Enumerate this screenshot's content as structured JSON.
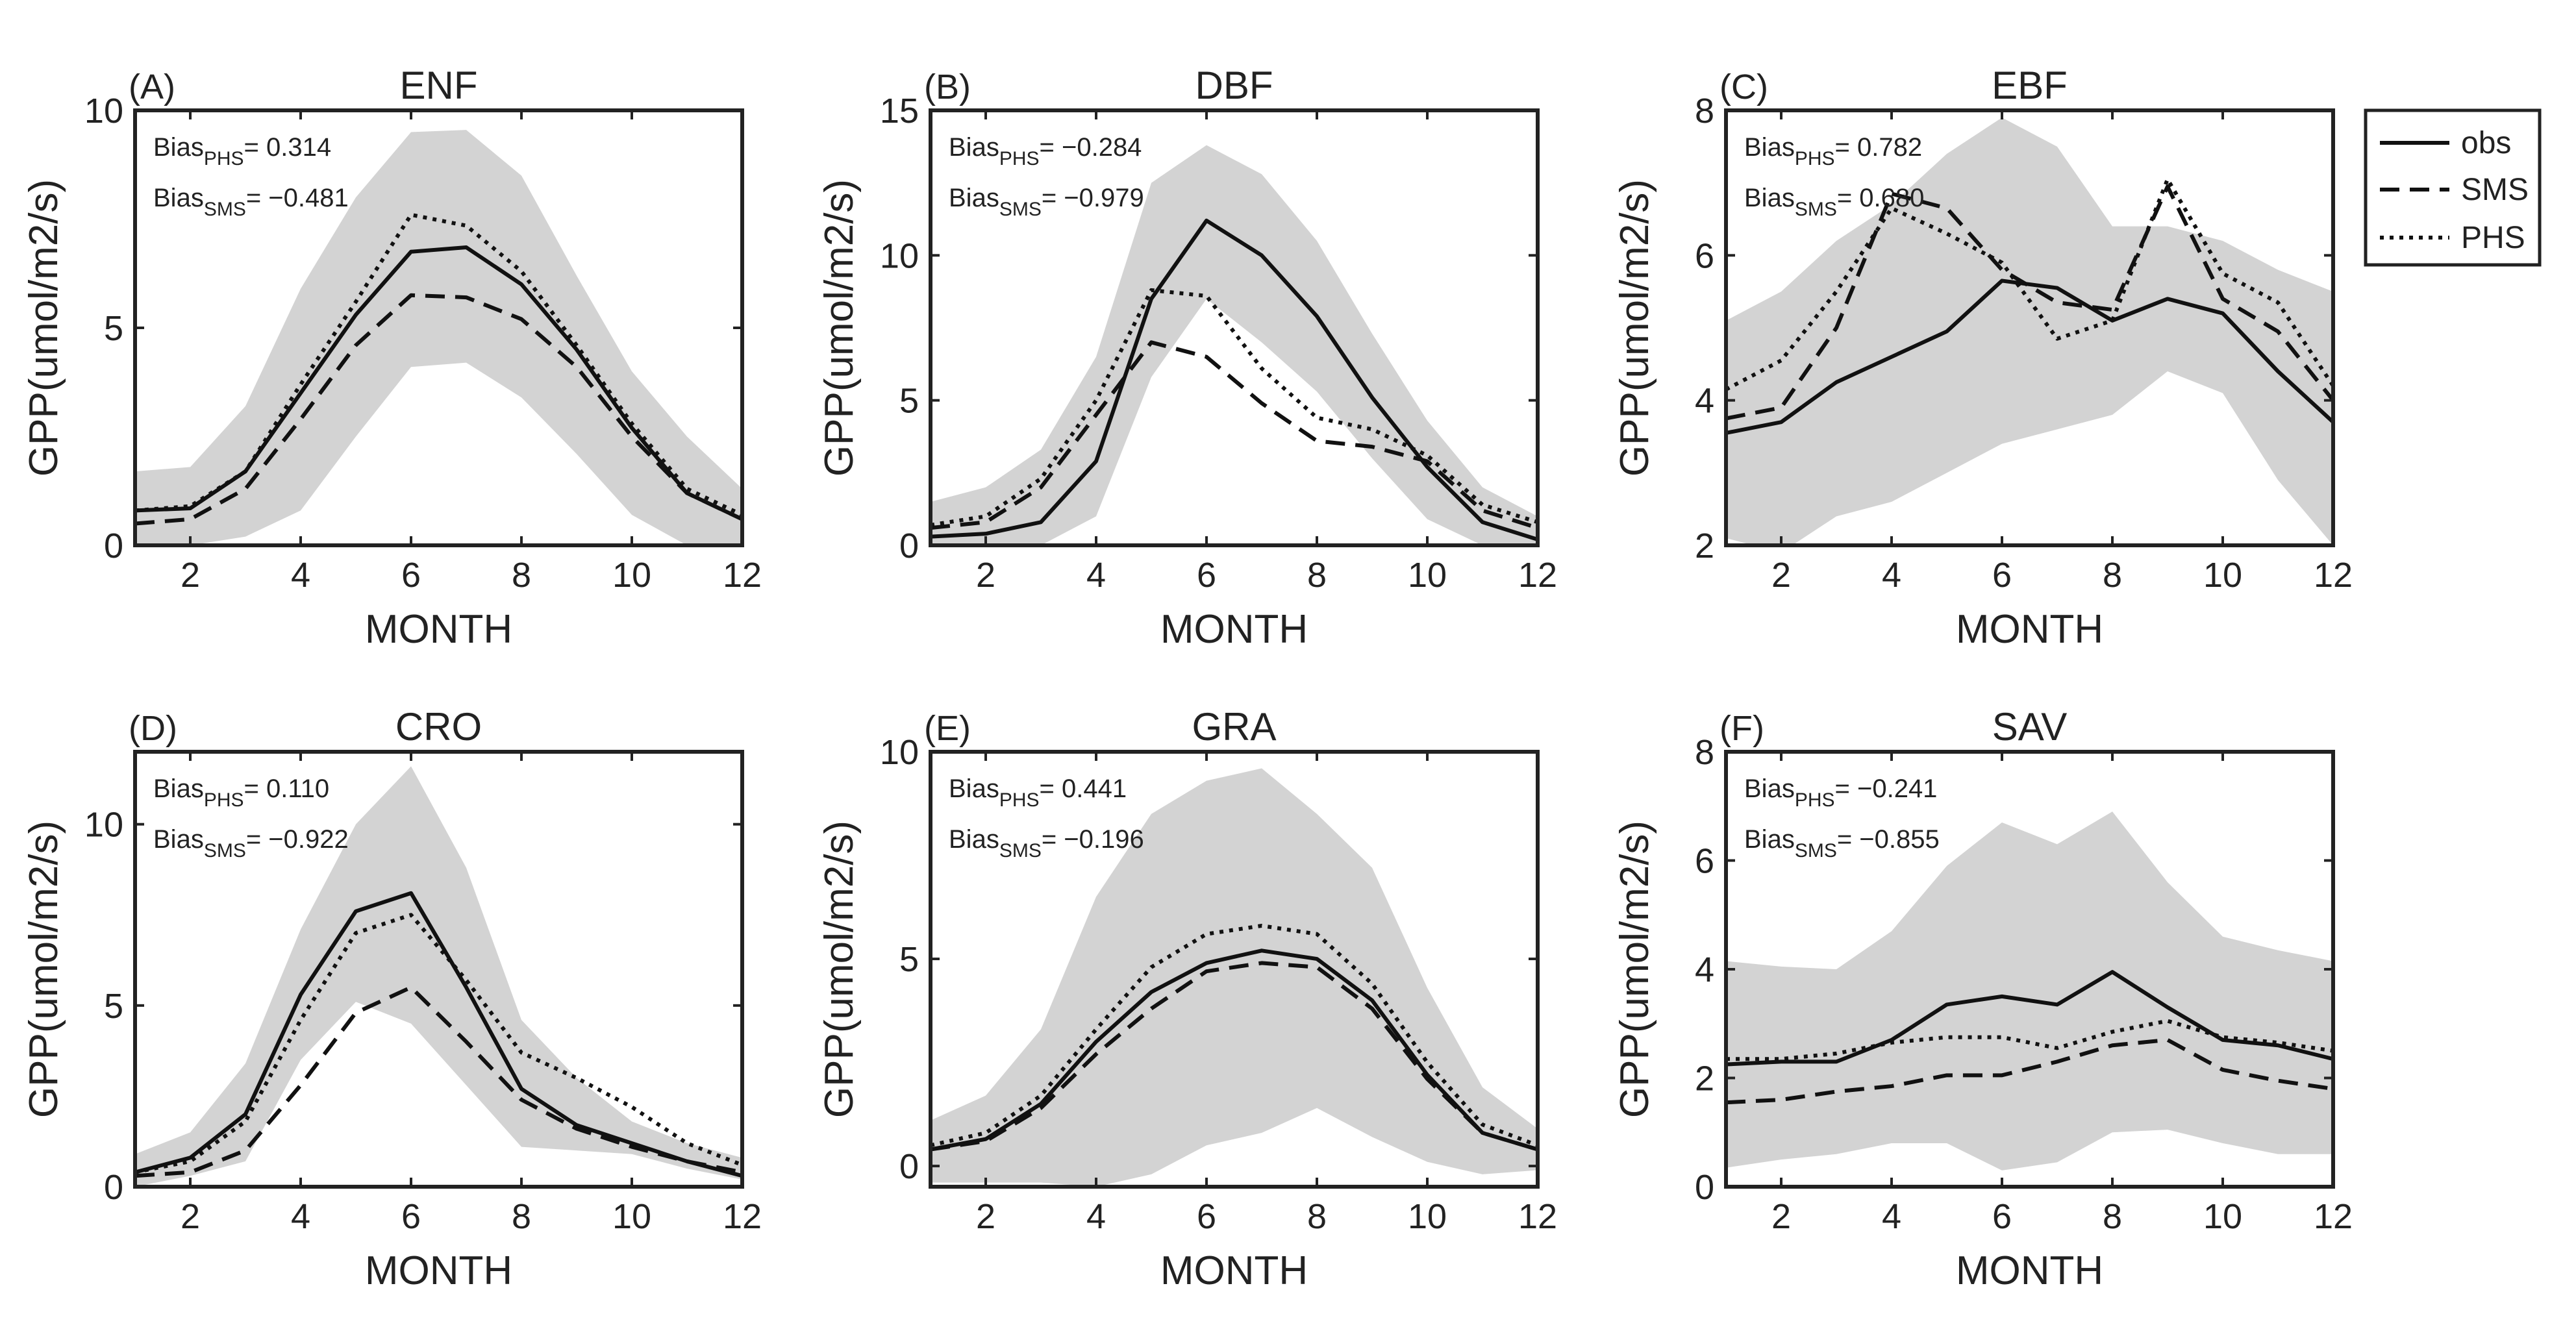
{
  "figure": {
    "xlabel": "MONTH",
    "ylabel": "GPP(umol/m2/s)",
    "bias_label": "Bias",
    "legend": [
      {
        "key": "obs",
        "label": "obs"
      },
      {
        "key": "sms",
        "label": "SMS"
      },
      {
        "key": "phs",
        "label": "PHS"
      }
    ],
    "colors": {
      "line": "#111111",
      "band": "#d3d3d3",
      "axis": "#222222"
    }
  },
  "chart_data": [
    {
      "type": "line",
      "panel": "(A)",
      "title": "ENF",
      "xlim": [
        1,
        12
      ],
      "ylim": [
        0,
        10
      ],
      "xticks": [
        2,
        4,
        6,
        8,
        10,
        12
      ],
      "yticks": [
        0,
        5,
        10
      ],
      "x": [
        1,
        2,
        3,
        4,
        5,
        6,
        7,
        8,
        9,
        10,
        11,
        12
      ],
      "series": [
        {
          "name": "obs",
          "values": [
            0.8,
            0.85,
            1.7,
            3.5,
            5.3,
            6.75,
            6.85,
            6.0,
            4.5,
            2.7,
            1.2,
            0.6
          ]
        },
        {
          "name": "SMS",
          "values": [
            0.5,
            0.6,
            1.3,
            2.9,
            4.6,
            5.75,
            5.7,
            5.2,
            4.1,
            2.5,
            1.2,
            0.6
          ]
        },
        {
          "name": "PHS",
          "values": [
            0.8,
            0.9,
            1.7,
            3.7,
            5.6,
            7.6,
            7.35,
            6.3,
            4.6,
            2.8,
            1.3,
            0.7
          ]
        }
      ],
      "band": {
        "upper": [
          1.7,
          1.8,
          3.2,
          5.9,
          8.0,
          9.5,
          9.55,
          8.5,
          6.2,
          4.0,
          2.5,
          1.3
        ],
        "lower": [
          0.0,
          0.0,
          0.2,
          0.8,
          2.5,
          4.1,
          4.2,
          3.4,
          2.1,
          0.7,
          0.0,
          0.0
        ]
      },
      "bias": [
        {
          "sub": "PHS",
          "value": "= 0.314"
        },
        {
          "sub": "SMS",
          "value": "= −0.481"
        }
      ]
    },
    {
      "type": "line",
      "panel": "(B)",
      "title": "DBF",
      "xlim": [
        1,
        12
      ],
      "ylim": [
        0,
        15
      ],
      "xticks": [
        2,
        4,
        6,
        8,
        10,
        12
      ],
      "yticks": [
        0,
        5,
        10,
        15
      ],
      "x": [
        1,
        2,
        3,
        4,
        5,
        6,
        7,
        8,
        9,
        10,
        11,
        12
      ],
      "series": [
        {
          "name": "obs",
          "values": [
            0.3,
            0.4,
            0.8,
            2.9,
            8.5,
            11.2,
            10.0,
            7.9,
            5.1,
            2.7,
            0.8,
            0.2
          ]
        },
        {
          "name": "SMS",
          "values": [
            0.6,
            0.8,
            2.0,
            4.5,
            7.0,
            6.5,
            4.9,
            3.6,
            3.4,
            2.9,
            1.2,
            0.6
          ]
        },
        {
          "name": "PHS",
          "values": [
            0.7,
            1.0,
            2.3,
            5.0,
            8.8,
            8.6,
            6.1,
            4.4,
            4.0,
            3.1,
            1.4,
            0.8
          ]
        }
      ],
      "band": {
        "upper": [
          1.5,
          2.0,
          3.3,
          6.5,
          12.5,
          13.8,
          12.8,
          10.5,
          7.3,
          4.3,
          2.0,
          1.0
        ],
        "lower": [
          0.0,
          0.0,
          0.0,
          1.0,
          5.8,
          8.5,
          7.0,
          5.3,
          3.0,
          0.9,
          0.0,
          0.0
        ]
      },
      "bias": [
        {
          "sub": "PHS",
          "value": "= −0.284"
        },
        {
          "sub": "SMS",
          "value": "= −0.979"
        }
      ]
    },
    {
      "type": "line",
      "panel": "(C)",
      "title": "EBF",
      "xlim": [
        1,
        12
      ],
      "ylim": [
        2,
        8
      ],
      "xticks": [
        2,
        4,
        6,
        8,
        10,
        12
      ],
      "yticks": [
        2,
        4,
        6,
        8
      ],
      "x": [
        1,
        2,
        3,
        4,
        5,
        6,
        7,
        8,
        9,
        10,
        11,
        12
      ],
      "series": [
        {
          "name": "obs",
          "values": [
            3.55,
            3.7,
            4.25,
            4.6,
            4.95,
            5.65,
            5.55,
            5.1,
            5.4,
            5.2,
            4.4,
            3.7
          ]
        },
        {
          "name": "SMS",
          "values": [
            3.75,
            3.9,
            5.0,
            6.85,
            6.65,
            5.8,
            5.35,
            5.25,
            6.95,
            5.4,
            4.95,
            4.0
          ]
        },
        {
          "name": "PHS",
          "values": [
            4.15,
            4.55,
            5.5,
            6.65,
            6.3,
            5.9,
            4.85,
            5.1,
            7.05,
            5.75,
            5.35,
            4.2
          ]
        }
      ],
      "band": {
        "upper": [
          5.1,
          5.5,
          6.2,
          6.7,
          7.4,
          7.9,
          7.5,
          6.4,
          6.4,
          6.2,
          5.8,
          5.5
        ],
        "lower": [
          2.1,
          1.9,
          2.4,
          2.6,
          3.0,
          3.4,
          3.6,
          3.8,
          4.4,
          4.1,
          2.9,
          2.0
        ]
      },
      "bias": [
        {
          "sub": "PHS",
          "value": "= 0.782"
        },
        {
          "sub": "SMS",
          "value": "= 0.680"
        }
      ]
    },
    {
      "type": "line",
      "panel": "(D)",
      "title": "CRO",
      "xlim": [
        1,
        12
      ],
      "ylim": [
        0,
        12
      ],
      "xticks": [
        2,
        4,
        6,
        8,
        10,
        12
      ],
      "yticks": [
        0,
        5,
        10
      ],
      "x": [
        1,
        2,
        3,
        4,
        5,
        6,
        7,
        8,
        9,
        10,
        11,
        12
      ],
      "series": [
        {
          "name": "obs",
          "values": [
            0.4,
            0.8,
            2.0,
            5.3,
            7.6,
            8.1,
            5.5,
            2.7,
            1.7,
            1.2,
            0.7,
            0.3
          ]
        },
        {
          "name": "SMS",
          "values": [
            0.3,
            0.4,
            1.0,
            2.8,
            4.8,
            5.5,
            4.0,
            2.4,
            1.6,
            1.1,
            0.7,
            0.4
          ]
        },
        {
          "name": "PHS",
          "values": [
            0.4,
            0.7,
            1.8,
            4.6,
            7.0,
            7.5,
            5.7,
            3.7,
            3.0,
            2.2,
            1.2,
            0.6
          ]
        }
      ],
      "band": {
        "upper": [
          0.9,
          1.5,
          3.4,
          7.1,
          10.0,
          11.6,
          8.8,
          4.6,
          3.0,
          1.8,
          1.2,
          0.8
        ],
        "lower": [
          0.0,
          0.3,
          0.7,
          3.5,
          5.1,
          4.5,
          2.8,
          1.1,
          1.0,
          0.9,
          0.5,
          0.2
        ]
      },
      "bias": [
        {
          "sub": "PHS",
          "value": "= 0.110"
        },
        {
          "sub": "SMS",
          "value": "= −0.922"
        }
      ]
    },
    {
      "type": "line",
      "panel": "(E)",
      "title": "GRA",
      "xlim": [
        1,
        12
      ],
      "ylim": [
        -0.5,
        10
      ],
      "xticks": [
        2,
        4,
        6,
        8,
        10,
        12
      ],
      "yticks": [
        0,
        5,
        10
      ],
      "x": [
        1,
        2,
        3,
        4,
        5,
        6,
        7,
        8,
        9,
        10,
        11,
        12
      ],
      "series": [
        {
          "name": "obs",
          "values": [
            0.4,
            0.65,
            1.5,
            3.0,
            4.2,
            4.9,
            5.2,
            5.0,
            4.0,
            2.2,
            0.8,
            0.4
          ]
        },
        {
          "name": "SMS",
          "values": [
            0.4,
            0.6,
            1.4,
            2.7,
            3.8,
            4.7,
            4.9,
            4.8,
            3.8,
            2.1,
            0.8,
            0.4
          ]
        },
        {
          "name": "PHS",
          "values": [
            0.5,
            0.8,
            1.7,
            3.3,
            4.8,
            5.6,
            5.8,
            5.6,
            4.4,
            2.5,
            1.0,
            0.5
          ]
        }
      ],
      "band": {
        "upper": [
          1.1,
          1.7,
          3.3,
          6.5,
          8.5,
          9.3,
          9.6,
          8.5,
          7.2,
          4.3,
          1.9,
          0.9
        ],
        "lower": [
          -0.4,
          -0.4,
          -0.4,
          -0.5,
          -0.2,
          0.5,
          0.8,
          1.4,
          0.7,
          0.1,
          -0.2,
          -0.1
        ]
      },
      "bias": [
        {
          "sub": "PHS",
          "value": "= 0.441"
        },
        {
          "sub": "SMS",
          "value": "= −0.196"
        }
      ]
    },
    {
      "type": "line",
      "panel": "(F)",
      "title": "SAV",
      "xlim": [
        1,
        12
      ],
      "ylim": [
        0,
        8
      ],
      "xticks": [
        2,
        4,
        6,
        8,
        10,
        12
      ],
      "yticks": [
        0,
        2,
        4,
        6,
        8
      ],
      "x": [
        1,
        2,
        3,
        4,
        5,
        6,
        7,
        8,
        9,
        10,
        11,
        12
      ],
      "series": [
        {
          "name": "obs",
          "values": [
            2.25,
            2.3,
            2.3,
            2.7,
            3.35,
            3.5,
            3.35,
            3.95,
            3.3,
            2.7,
            2.6,
            2.35
          ]
        },
        {
          "name": "SMS",
          "values": [
            1.55,
            1.6,
            1.75,
            1.85,
            2.05,
            2.05,
            2.3,
            2.6,
            2.7,
            2.15,
            1.95,
            1.8
          ]
        },
        {
          "name": "PHS",
          "values": [
            2.35,
            2.35,
            2.45,
            2.65,
            2.75,
            2.75,
            2.55,
            2.85,
            3.05,
            2.75,
            2.65,
            2.5
          ]
        }
      ],
      "band": {
        "upper": [
          4.15,
          4.05,
          4.0,
          4.7,
          5.9,
          6.7,
          6.3,
          6.9,
          5.6,
          4.6,
          4.35,
          4.15
        ],
        "lower": [
          0.35,
          0.5,
          0.6,
          0.8,
          0.8,
          0.3,
          0.45,
          1.0,
          1.05,
          0.8,
          0.6,
          0.6
        ]
      },
      "bias": [
        {
          "sub": "PHS",
          "value": "= −0.241"
        },
        {
          "sub": "SMS",
          "value": "= −0.855"
        }
      ]
    }
  ]
}
